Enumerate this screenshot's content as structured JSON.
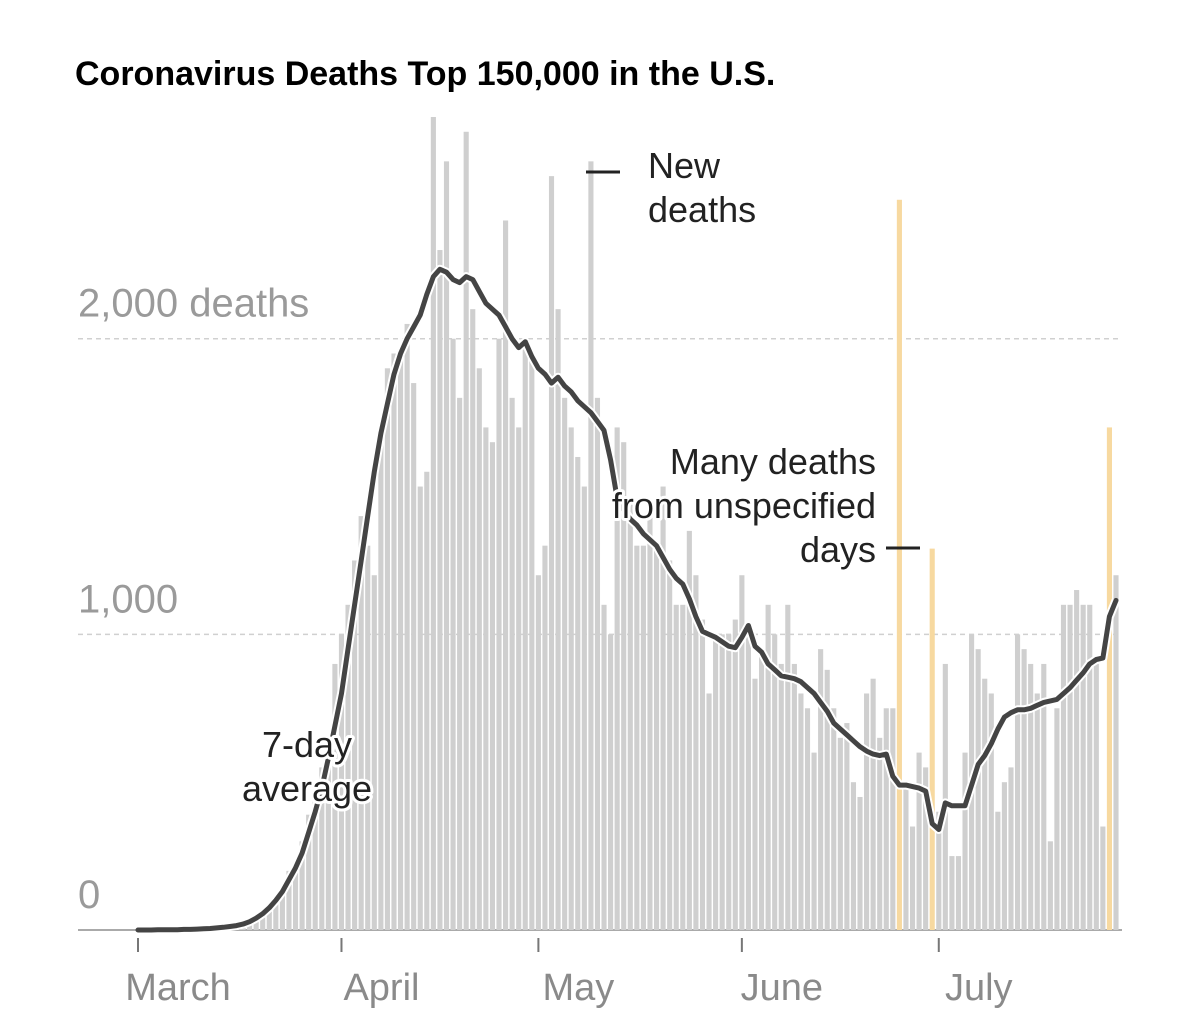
{
  "chart_data": {
    "type": "bar_line",
    "title": "Coronavirus Deaths Top 150,000 in the U.S.",
    "x": [
      0,
      1,
      2,
      3,
      4,
      5,
      6,
      7,
      8,
      9,
      10,
      11,
      12,
      13,
      14,
      15,
      16,
      17,
      18,
      19,
      20,
      21,
      22,
      23,
      24,
      25,
      26,
      27,
      28,
      29,
      30,
      31,
      32,
      33,
      34,
      35,
      36,
      37,
      38,
      39,
      40,
      41,
      42,
      43,
      44,
      45,
      46,
      47,
      48,
      49,
      50,
      51,
      52,
      53,
      54,
      55,
      56,
      57,
      58,
      59,
      60,
      61,
      62,
      63,
      64,
      65,
      66,
      67,
      68,
      69,
      70,
      71,
      72,
      73,
      74,
      75,
      76,
      77,
      78,
      79,
      80,
      81,
      82,
      83,
      84,
      85,
      86,
      87,
      88,
      89,
      90,
      91,
      92,
      93,
      94,
      95,
      96,
      97,
      98,
      99,
      100,
      101,
      102,
      103,
      104,
      105,
      106,
      107,
      108,
      109,
      110,
      111,
      112,
      113,
      114,
      115,
      116,
      117,
      118,
      119,
      120,
      121,
      122,
      123,
      124,
      125,
      126,
      127,
      128,
      129,
      130,
      131,
      132,
      133,
      134,
      135,
      136,
      137,
      138,
      139,
      140,
      141,
      142,
      143,
      144,
      145,
      146,
      147,
      148,
      149
    ],
    "xlim": [
      -1,
      150
    ],
    "xticks": [
      {
        "value": 0,
        "label": "March"
      },
      {
        "value": 31,
        "label": "April"
      },
      {
        "value": 61,
        "label": "May"
      },
      {
        "value": 92,
        "label": "June"
      },
      {
        "value": 122,
        "label": "July"
      }
    ],
    "ylim": [
      0,
      2750
    ],
    "yticks": [
      0,
      {
        "value": 1000,
        "label": "1,000"
      },
      {
        "value": 2000,
        "label": "2,000 deaths"
      }
    ],
    "grid": true,
    "series": [
      {
        "kind": "bar",
        "color": "#cfcfcf",
        "values": [
          0,
          0,
          1,
          2,
          1,
          3,
          3,
          5,
          4,
          6,
          6,
          9,
          10,
          12,
          14,
          18,
          25,
          40,
          50,
          60,
          80,
          110,
          140,
          200,
          230,
          300,
          390,
          460,
          550,
          650,
          900,
          1000,
          1100,
          1250,
          1400,
          1300,
          1200,
          1700,
          1900,
          1950,
          1950,
          2050,
          1850,
          1500,
          1550,
          2750,
          2300,
          2600,
          2000,
          1800,
          2700,
          2100,
          1900,
          1700,
          1650,
          2000,
          2400,
          1800,
          1700,
          2000,
          1950,
          1200,
          1300,
          2550,
          2100,
          1800,
          1700,
          1600,
          1500,
          2600,
          1800,
          1100,
          1000,
          1700,
          1650,
          1450,
          1300,
          1300,
          1400,
          1300,
          1500,
          1250,
          1100,
          1100,
          1350,
          1200,
          1050,
          800,
          1000,
          1000,
          1000,
          1050,
          1200,
          1000,
          850,
          950,
          1100,
          1000,
          900,
          1100,
          900,
          800,
          750,
          600,
          950,
          880,
          750,
          650,
          700,
          500,
          450,
          800,
          850,
          650,
          750,
          750,
          null,
          500,
          350,
          600,
          550,
          null,
          400,
          900,
          250,
          250,
          600,
          1000,
          950,
          850,
          800,
          400,
          500,
          550,
          1000,
          950,
          900,
          800,
          900,
          300,
          750,
          1100,
          1100,
          1150,
          1100,
          1100,
          900,
          350,
          null,
          1200
        ]
      },
      {
        "kind": "bar",
        "color": "#f7d9a0",
        "values": [
          null,
          null,
          null,
          null,
          null,
          null,
          null,
          null,
          null,
          null,
          null,
          null,
          null,
          null,
          null,
          null,
          null,
          null,
          null,
          null,
          null,
          null,
          null,
          null,
          null,
          null,
          null,
          null,
          null,
          null,
          null,
          null,
          null,
          null,
          null,
          null,
          null,
          null,
          null,
          null,
          null,
          null,
          null,
          null,
          null,
          null,
          null,
          null,
          null,
          null,
          null,
          null,
          null,
          null,
          null,
          null,
          null,
          null,
          null,
          null,
          null,
          null,
          null,
          null,
          null,
          null,
          null,
          null,
          null,
          null,
          null,
          null,
          null,
          null,
          null,
          null,
          null,
          null,
          null,
          null,
          null,
          null,
          null,
          null,
          null,
          null,
          null,
          null,
          null,
          null,
          null,
          null,
          null,
          null,
          null,
          null,
          null,
          null,
          null,
          null,
          null,
          null,
          null,
          null,
          null,
          null,
          null,
          null,
          null,
          null,
          null,
          null,
          null,
          null,
          null,
          null,
          2470,
          null,
          null,
          null,
          null,
          1290,
          null,
          null,
          null,
          null,
          null,
          null,
          null,
          null,
          null,
          null,
          null,
          null,
          null,
          null,
          null,
          null,
          null,
          null,
          null,
          null,
          null,
          null,
          null,
          null,
          null,
          null,
          1700,
          null
        ]
      },
      {
        "kind": "line",
        "color": "#444444",
        "values": [
          0,
          0,
          0,
          1,
          1,
          1,
          1,
          2,
          2,
          3,
          4,
          5,
          7,
          9,
          12,
          15,
          20,
          28,
          40,
          55,
          75,
          100,
          130,
          170,
          210,
          260,
          330,
          400,
          480,
          580,
          690,
          800,
          950,
          1100,
          1250,
          1400,
          1550,
          1680,
          1780,
          1880,
          1950,
          2000,
          2040,
          2080,
          2150,
          2210,
          2235,
          2225,
          2200,
          2190,
          2210,
          2200,
          2160,
          2120,
          2100,
          2080,
          2040,
          2000,
          1970,
          1990,
          1940,
          1900,
          1880,
          1850,
          1870,
          1840,
          1820,
          1790,
          1770,
          1750,
          1720,
          1690,
          1590,
          1460,
          1420,
          1390,
          1370,
          1340,
          1320,
          1300,
          1260,
          1220,
          1190,
          1170,
          1120,
          1060,
          1010,
          1000,
          990,
          975,
          960,
          955,
          990,
          1030,
          960,
          940,
          900,
          880,
          860,
          855,
          850,
          840,
          820,
          800,
          770,
          740,
          700,
          680,
          660,
          640,
          620,
          605,
          595,
          590,
          595,
          520,
          490,
          490,
          485,
          480,
          470,
          360,
          340,
          430,
          420,
          420,
          420,
          490,
          560,
          590,
          630,
          680,
          720,
          735,
          745,
          745,
          750,
          760,
          770,
          775,
          780,
          800,
          820,
          845,
          870,
          900,
          915,
          920,
          1060,
          1115
        ]
      }
    ],
    "annotations": [
      {
        "lines": [
          "New",
          "deaths"
        ]
      },
      {
        "lines": [
          "7-day",
          "average"
        ]
      },
      {
        "lines": [
          "Many deaths",
          "from unspecified",
          "days"
        ]
      }
    ]
  }
}
